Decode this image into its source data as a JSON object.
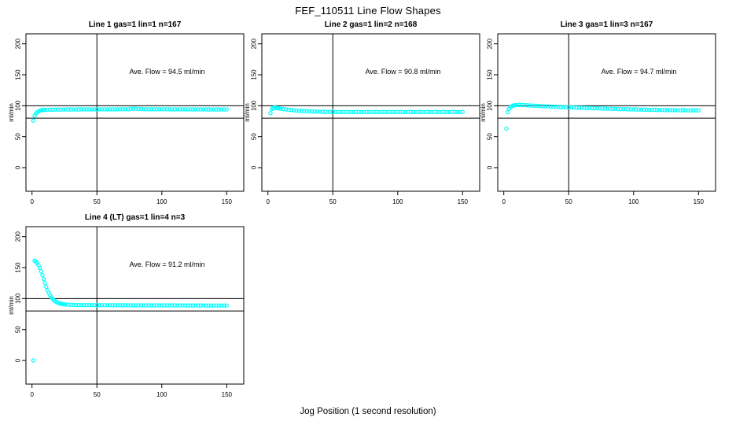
{
  "figure": {
    "title": "FEF_110511  Line Flow Shapes",
    "xlabel": "Jog Position (1 second resolution)"
  },
  "axes": {
    "ylabel": "ml/min",
    "x_ticks": [
      0,
      50,
      100,
      150
    ],
    "y_ticks": [
      0,
      50,
      100,
      150,
      200
    ],
    "xlim": [
      0,
      150
    ],
    "ylim": [
      0,
      200
    ],
    "reference_lines": {
      "h": [
        80,
        100
      ],
      "v": [
        50
      ]
    },
    "point_color": "#00FFFF",
    "line_color": "#000000"
  },
  "chart_data": [
    {
      "type": "scatter",
      "title": "Line 1 gas=1 lin=1 n=167",
      "annotation": "Ave. Flow =  94.5  ml/min",
      "ave_flow_ml_min": 94.5,
      "n": 167,
      "points": [
        [
          1,
          76
        ],
        [
          2,
          84
        ],
        [
          3,
          87.5
        ],
        [
          4,
          89.5
        ],
        [
          5,
          91
        ],
        [
          6,
          92
        ],
        [
          7,
          92.6
        ],
        [
          8,
          93
        ],
        [
          9,
          93.2
        ],
        [
          10,
          93.3
        ],
        [
          12,
          93.5
        ],
        [
          14,
          93.6
        ],
        [
          16,
          93.7
        ],
        [
          18,
          93.8
        ],
        [
          20,
          93.8
        ],
        [
          22,
          93.9
        ],
        [
          24,
          93.9
        ],
        [
          26,
          94
        ],
        [
          28,
          94
        ],
        [
          30,
          94
        ],
        [
          32,
          94
        ],
        [
          34,
          94
        ],
        [
          36,
          94.1
        ],
        [
          38,
          94.1
        ],
        [
          40,
          94.1
        ],
        [
          42,
          94.1
        ],
        [
          44,
          94.1
        ],
        [
          46,
          94.2
        ],
        [
          48,
          94.2
        ],
        [
          50,
          94.2
        ],
        [
          52,
          94.2
        ],
        [
          54,
          94.2
        ],
        [
          56,
          94.2
        ],
        [
          58,
          94.2
        ],
        [
          60,
          94.2
        ],
        [
          62,
          94.2
        ],
        [
          64,
          94.2
        ],
        [
          66,
          94.3
        ],
        [
          68,
          94.3
        ],
        [
          70,
          94.3
        ],
        [
          72,
          94.3
        ],
        [
          74,
          94.3
        ],
        [
          76,
          95
        ],
        [
          78,
          95.2
        ],
        [
          80,
          95.2
        ],
        [
          82,
          95
        ],
        [
          84,
          94.8
        ],
        [
          86,
          94.3
        ],
        [
          88,
          94.3
        ],
        [
          90,
          94.3
        ],
        [
          92,
          94.3
        ],
        [
          94,
          94.3
        ],
        [
          96,
          94.3
        ],
        [
          98,
          94.3
        ],
        [
          100,
          94.3
        ],
        [
          102,
          94.3
        ],
        [
          104,
          94.3
        ],
        [
          106,
          94.3
        ],
        [
          108,
          94.2
        ],
        [
          110,
          94.2
        ],
        [
          112,
          94.2
        ],
        [
          114,
          94.2
        ],
        [
          116,
          94.2
        ],
        [
          118,
          94.2
        ],
        [
          120,
          94.2
        ],
        [
          122,
          94.2
        ],
        [
          124,
          94.1
        ],
        [
          126,
          94.1
        ],
        [
          128,
          94.1
        ],
        [
          130,
          94.1
        ],
        [
          132,
          94.1
        ],
        [
          134,
          94
        ],
        [
          136,
          94
        ],
        [
          138,
          94
        ],
        [
          140,
          94
        ],
        [
          142,
          94
        ],
        [
          144,
          94
        ],
        [
          146,
          94
        ],
        [
          148,
          94
        ],
        [
          150,
          94
        ]
      ]
    },
    {
      "type": "scatter",
      "title": "Line 2 gas=1 lin=2 n=168",
      "annotation": "Ave. Flow =  90.8  ml/min",
      "ave_flow_ml_min": 90.8,
      "n": 168,
      "points": [
        [
          2,
          88
        ],
        [
          3,
          94.5
        ],
        [
          4,
          96.3
        ],
        [
          5,
          97
        ],
        [
          6,
          96.8
        ],
        [
          7,
          96.4
        ],
        [
          8,
          96
        ],
        [
          9,
          95.6
        ],
        [
          10,
          95.2
        ],
        [
          12,
          94.6
        ],
        [
          14,
          94
        ],
        [
          16,
          93.5
        ],
        [
          18,
          93
        ],
        [
          20,
          92.6
        ],
        [
          22,
          92.2
        ],
        [
          24,
          91.9
        ],
        [
          26,
          91.6
        ],
        [
          28,
          91.4
        ],
        [
          30,
          91.2
        ],
        [
          32,
          91
        ],
        [
          34,
          90.8
        ],
        [
          36,
          90.7
        ],
        [
          38,
          90.5
        ],
        [
          40,
          90.4
        ],
        [
          42,
          90.3
        ],
        [
          44,
          90.2
        ],
        [
          46,
          90.1
        ],
        [
          48,
          90
        ],
        [
          50,
          90
        ],
        [
          52,
          89.9
        ],
        [
          54,
          89.9
        ],
        [
          56,
          89.9
        ],
        [
          58,
          89.8
        ],
        [
          60,
          89.8
        ],
        [
          62,
          89.8
        ],
        [
          64,
          89.8
        ],
        [
          66,
          89.8
        ],
        [
          68,
          89.8
        ],
        [
          70,
          89.8
        ],
        [
          72,
          89.8
        ],
        [
          74,
          89.8
        ],
        [
          76,
          89.8
        ],
        [
          78,
          89.8
        ],
        [
          80,
          89.8
        ],
        [
          82,
          89.8
        ],
        [
          84,
          89.8
        ],
        [
          86,
          89.8
        ],
        [
          88,
          89.8
        ],
        [
          90,
          89.8
        ],
        [
          92,
          89.8
        ],
        [
          94,
          89.8
        ],
        [
          96,
          89.8
        ],
        [
          98,
          89.8
        ],
        [
          100,
          89.8
        ],
        [
          102,
          89.8
        ],
        [
          104,
          89.8
        ],
        [
          106,
          89.8
        ],
        [
          108,
          89.8
        ],
        [
          110,
          89.8
        ],
        [
          112,
          89.8
        ],
        [
          114,
          89.8
        ],
        [
          116,
          89.8
        ],
        [
          118,
          89.8
        ],
        [
          120,
          89.8
        ],
        [
          122,
          89.8
        ],
        [
          124,
          89.8
        ],
        [
          126,
          89.8
        ],
        [
          128,
          89.8
        ],
        [
          130,
          89.8
        ],
        [
          132,
          89.8
        ],
        [
          134,
          89.8
        ],
        [
          136,
          89.8
        ],
        [
          138,
          89.8
        ],
        [
          140,
          89.8
        ],
        [
          142,
          89.8
        ],
        [
          144,
          89.8
        ],
        [
          146,
          89.8
        ],
        [
          148,
          89.8
        ],
        [
          150,
          89.8
        ]
      ]
    },
    {
      "type": "scatter",
      "title": "Line 3 gas=1 lin=3 n=167",
      "annotation": "Ave. Flow =  94.7  ml/min",
      "ave_flow_ml_min": 94.7,
      "n": 167,
      "points": [
        [
          2,
          63
        ],
        [
          3,
          89.5
        ],
        [
          4,
          95
        ],
        [
          5,
          97.5
        ],
        [
          6,
          99
        ],
        [
          7,
          100
        ],
        [
          8,
          100.6
        ],
        [
          9,
          101
        ],
        [
          10,
          101.2
        ],
        [
          12,
          101.4
        ],
        [
          14,
          101.3
        ],
        [
          16,
          101.1
        ],
        [
          18,
          100.8
        ],
        [
          20,
          100.5
        ],
        [
          22,
          100.2
        ],
        [
          24,
          100
        ],
        [
          26,
          99.8
        ],
        [
          28,
          99.5
        ],
        [
          30,
          99.3
        ],
        [
          32,
          99.1
        ],
        [
          34,
          98.9
        ],
        [
          36,
          98.7
        ],
        [
          38,
          98.5
        ],
        [
          40,
          98.3
        ],
        [
          42,
          98.1
        ],
        [
          44,
          98
        ],
        [
          46,
          97.8
        ],
        [
          48,
          97.6
        ],
        [
          50,
          97.5
        ],
        [
          52,
          97.3
        ],
        [
          54,
          97.2
        ],
        [
          56,
          97
        ],
        [
          58,
          96.9
        ],
        [
          60,
          96.7
        ],
        [
          62,
          96.6
        ],
        [
          64,
          96.4
        ],
        [
          66,
          96.3
        ],
        [
          68,
          96.1
        ],
        [
          70,
          96
        ],
        [
          72,
          95.9
        ],
        [
          74,
          95.7
        ],
        [
          76,
          95.6
        ],
        [
          78,
          95.4
        ],
        [
          80,
          95.3
        ],
        [
          82,
          95.2
        ],
        [
          84,
          95
        ],
        [
          86,
          94.9
        ],
        [
          88,
          94.8
        ],
        [
          90,
          94.7
        ],
        [
          92,
          94.5
        ],
        [
          94,
          94.4
        ],
        [
          96,
          94.3
        ],
        [
          98,
          94.2
        ],
        [
          100,
          94.1
        ],
        [
          102,
          94
        ],
        [
          104,
          93.9
        ],
        [
          106,
          93.8
        ],
        [
          108,
          93.7
        ],
        [
          110,
          93.6
        ],
        [
          112,
          93.5
        ],
        [
          114,
          93.4
        ],
        [
          116,
          93.3
        ],
        [
          118,
          93.3
        ],
        [
          120,
          93.2
        ],
        [
          122,
          93.1
        ],
        [
          124,
          93
        ],
        [
          126,
          93
        ],
        [
          128,
          92.9
        ],
        [
          130,
          92.9
        ],
        [
          132,
          92.8
        ],
        [
          134,
          92.8
        ],
        [
          136,
          92.7
        ],
        [
          138,
          92.7
        ],
        [
          140,
          92.6
        ],
        [
          142,
          92.6
        ],
        [
          144,
          92.5
        ],
        [
          146,
          92.5
        ],
        [
          148,
          92.5
        ],
        [
          150,
          92.4
        ]
      ]
    },
    {
      "type": "scatter",
      "title": "Line 4 (LT) gas=1 lin=4 n=3",
      "annotation": "Ave. Flow =  91.2  ml/min",
      "ave_flow_ml_min": 91.2,
      "n": 3,
      "points": [
        [
          1,
          0
        ],
        [
          2,
          161
        ],
        [
          3,
          160
        ],
        [
          4,
          157.5
        ],
        [
          5,
          154
        ],
        [
          6,
          149.5
        ],
        [
          7,
          144
        ],
        [
          8,
          138
        ],
        [
          9,
          131.5
        ],
        [
          10,
          125
        ],
        [
          11,
          119
        ],
        [
          12,
          113.5
        ],
        [
          13,
          109
        ],
        [
          14,
          105
        ],
        [
          15,
          101.8
        ],
        [
          16,
          99.2
        ],
        [
          17,
          97.2
        ],
        [
          18,
          95.6
        ],
        [
          19,
          94.3
        ],
        [
          20,
          93.3
        ],
        [
          21,
          92.5
        ],
        [
          22,
          91.9
        ],
        [
          23,
          91.4
        ],
        [
          24,
          91
        ],
        [
          25,
          90.7
        ],
        [
          26,
          90.4
        ],
        [
          28,
          90.1
        ],
        [
          30,
          89.9
        ],
        [
          32,
          89.8
        ],
        [
          34,
          89.7
        ],
        [
          36,
          89.6
        ],
        [
          38,
          89.6
        ],
        [
          40,
          89.5
        ],
        [
          42,
          89.5
        ],
        [
          44,
          89.5
        ],
        [
          46,
          89.4
        ],
        [
          48,
          89.4
        ],
        [
          50,
          89.4
        ],
        [
          52,
          89.4
        ],
        [
          54,
          89.3
        ],
        [
          56,
          89.3
        ],
        [
          58,
          89.3
        ],
        [
          60,
          89.3
        ],
        [
          62,
          89.3
        ],
        [
          64,
          89.2
        ],
        [
          66,
          89.2
        ],
        [
          68,
          89.2
        ],
        [
          70,
          89.2
        ],
        [
          72,
          89.2
        ],
        [
          74,
          89.2
        ],
        [
          76,
          89.1
        ],
        [
          78,
          89.1
        ],
        [
          80,
          89.1
        ],
        [
          82,
          89.1
        ],
        [
          84,
          89.1
        ],
        [
          86,
          89.1
        ],
        [
          88,
          89
        ],
        [
          90,
          89
        ],
        [
          92,
          89
        ],
        [
          94,
          89
        ],
        [
          96,
          89
        ],
        [
          98,
          89
        ],
        [
          100,
          89
        ],
        [
          102,
          89
        ],
        [
          104,
          89
        ],
        [
          106,
          89
        ],
        [
          108,
          89
        ],
        [
          110,
          89
        ],
        [
          112,
          89
        ],
        [
          114,
          89
        ],
        [
          116,
          88.9
        ],
        [
          118,
          88.9
        ],
        [
          120,
          88.9
        ],
        [
          122,
          88.9
        ],
        [
          124,
          88.9
        ],
        [
          126,
          88.9
        ],
        [
          128,
          88.9
        ],
        [
          130,
          88.9
        ],
        [
          132,
          88.9
        ],
        [
          134,
          88.8
        ],
        [
          136,
          88.8
        ],
        [
          138,
          88.8
        ],
        [
          140,
          88.8
        ],
        [
          142,
          88.8
        ],
        [
          144,
          88.8
        ],
        [
          146,
          88.8
        ],
        [
          148,
          88.8
        ],
        [
          150,
          88.8
        ]
      ]
    }
  ]
}
